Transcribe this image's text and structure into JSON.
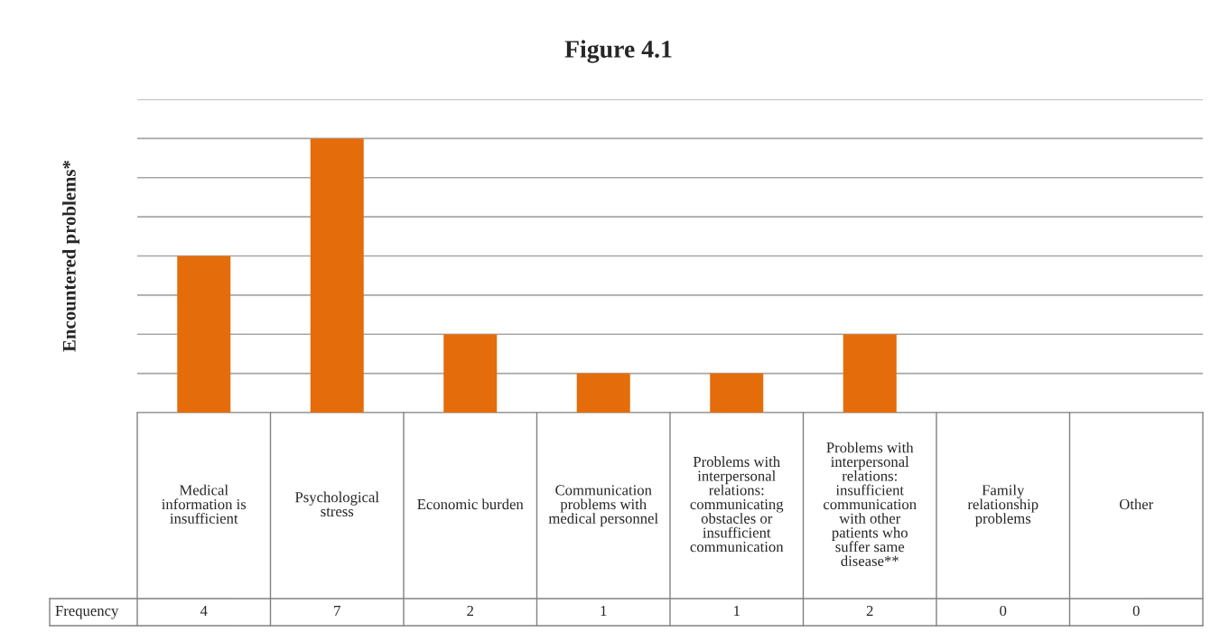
{
  "chart_data": {
    "type": "bar",
    "title": "Figure 4.1",
    "ylabel": "Encountered problems*",
    "categories": [
      "Medical information is insufficient",
      "Psychological stress",
      "Economic burden",
      "Communication problems with medical personnel",
      "Problems with interpersonal relations: communicating obstacles or insufficient communication",
      "Problems with interpersonal relations: insufficient communication with other patients who suffer same disease**",
      "Family relationship problems",
      "Other"
    ],
    "series": [
      {
        "name": "Frequency",
        "color": "#e46c0a",
        "values": [
          4,
          7,
          2,
          1,
          1,
          2,
          0,
          0
        ]
      }
    ],
    "ylim": [
      0,
      8
    ],
    "yticks": [
      {
        "value": 0,
        "label": null
      },
      {
        "value": 1,
        "label": null
      },
      {
        "value": 2,
        "label": null
      },
      {
        "value": 3,
        "label": null
      },
      {
        "value": 4,
        "label": null
      },
      {
        "value": 5,
        "label": null
      },
      {
        "value": 6,
        "label": null
      },
      {
        "value": 7,
        "label": null
      },
      {
        "value": 8,
        "label": null
      }
    ],
    "tick_labels": "x",
    "grid": "y",
    "data_labels": true
  }
}
